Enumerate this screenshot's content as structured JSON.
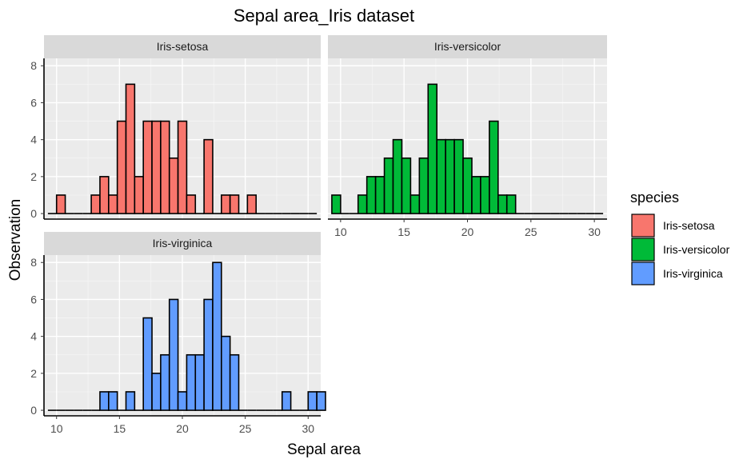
{
  "chart_data": {
    "type": "bar",
    "title": "Sepal area_Iris dataset",
    "xlabel": "Sepal area",
    "ylabel": "Observation",
    "xlim": [
      9,
      31
    ],
    "ylim": [
      -0.3,
      8.4
    ],
    "x_ticks": [
      10,
      15,
      20,
      25,
      30
    ],
    "y_ticks": [
      0,
      2,
      4,
      6,
      8
    ],
    "grid": true,
    "bin_width": 0.6897,
    "bin_start": 9.31,
    "legend": {
      "title": "species",
      "position": "right"
    },
    "series": [
      {
        "name": "Iris-setosa",
        "color": "#F8766D",
        "values": [
          0,
          1,
          0,
          0,
          0,
          1,
          2,
          1,
          5,
          7,
          2,
          5,
          5,
          5,
          3,
          5,
          1,
          0,
          4,
          0,
          1,
          1,
          0,
          1,
          0,
          0,
          0,
          0,
          0,
          0,
          0
        ]
      },
      {
        "name": "Iris-versicolor",
        "color": "#00BA38",
        "values": [
          1,
          0,
          0,
          1,
          2,
          2,
          3,
          4,
          3,
          1,
          3,
          7,
          4,
          4,
          4,
          3,
          2,
          2,
          5,
          1,
          1,
          0,
          0,
          0,
          0,
          0,
          0,
          0,
          0,
          0,
          0
        ]
      },
      {
        "name": "Iris-virginica",
        "color": "#619CFF",
        "values": [
          0,
          0,
          0,
          0,
          0,
          0,
          1,
          1,
          0,
          1,
          0,
          5,
          2,
          3,
          6,
          1,
          3,
          3,
          6,
          8,
          4,
          3,
          0,
          0,
          0,
          0,
          0,
          1,
          0,
          0,
          1,
          1
        ]
      }
    ]
  }
}
